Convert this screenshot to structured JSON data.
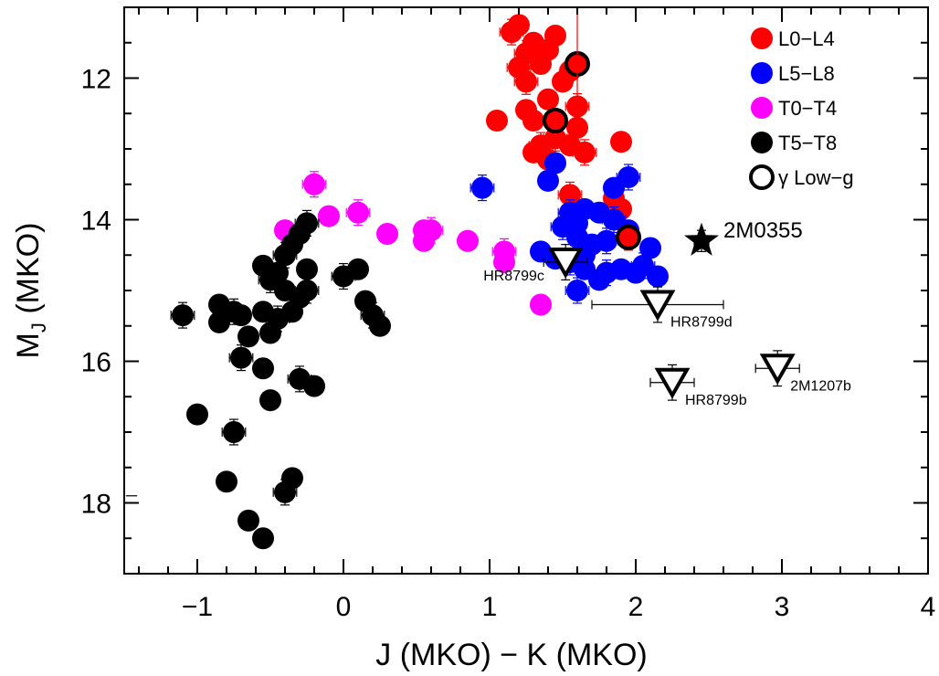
{
  "chart_data": {
    "type": "scatter",
    "xlabel": "J (MKO) − K (MKO)",
    "ylabel_main": "M",
    "ylabel_sub": "J",
    "ylabel_rest": " (MKO)",
    "xlim": [
      -1.5,
      4.0
    ],
    "ylim": [
      19.0,
      11.0
    ],
    "y_inverted": true,
    "x_ticks": [
      -1,
      0,
      1,
      2,
      3,
      4
    ],
    "x_tick_labels": [
      "−1",
      "0",
      "1",
      "2",
      "3",
      "4"
    ],
    "y_ticks": [
      12,
      14,
      16,
      18
    ],
    "y_tick_labels": [
      "12",
      "14",
      "16",
      "18"
    ],
    "legend_position": "top-right",
    "legend": [
      {
        "label": "L0−L4",
        "color": "#ff0000",
        "marker": "filled-circle"
      },
      {
        "label": "L5−L8",
        "color": "#0000ff",
        "marker": "filled-circle"
      },
      {
        "label": "T0−T4",
        "color": "#ff00ff",
        "marker": "filled-circle"
      },
      {
        "label": "T5−T8",
        "color": "#000000",
        "marker": "filled-circle"
      },
      {
        "label": "γ Low−g",
        "color": "#000000",
        "marker": "open-circle"
      }
    ],
    "series": [
      {
        "name": "L0−L4",
        "color": "#ff0000",
        "points": [
          [
            1.15,
            11.35
          ],
          [
            1.2,
            11.25
          ],
          [
            1.3,
            11.5
          ],
          [
            1.25,
            11.65
          ],
          [
            1.45,
            11.4
          ],
          [
            1.4,
            11.6
          ],
          [
            1.2,
            11.85
          ],
          [
            1.35,
            11.8
          ],
          [
            1.55,
            11.9
          ],
          [
            1.25,
            12.05
          ],
          [
            1.5,
            12.05
          ],
          [
            1.4,
            12.3
          ],
          [
            1.6,
            12.4
          ],
          [
            1.25,
            12.45
          ],
          [
            1.3,
            12.6
          ],
          [
            1.45,
            12.85
          ],
          [
            1.6,
            12.7
          ],
          [
            1.55,
            12.95
          ],
          [
            1.35,
            12.95
          ],
          [
            1.4,
            13.15
          ],
          [
            1.3,
            13.05
          ],
          [
            1.65,
            13.05
          ],
          [
            1.9,
            12.9
          ],
          [
            1.05,
            12.6
          ],
          [
            1.55,
            13.65
          ],
          [
            1.85,
            13.7
          ],
          [
            1.9,
            13.85
          ],
          [
            1.95,
            14.25
          ]
        ]
      },
      {
        "name": "L5−L8",
        "color": "#0000ff",
        "points": [
          [
            0.95,
            13.55
          ],
          [
            1.45,
            13.2
          ],
          [
            1.4,
            13.45
          ],
          [
            1.55,
            13.9
          ],
          [
            1.6,
            14.05
          ],
          [
            1.65,
            13.85
          ],
          [
            1.5,
            14.1
          ],
          [
            1.6,
            14.25
          ],
          [
            1.7,
            14.35
          ],
          [
            1.8,
            14.3
          ],
          [
            1.35,
            14.45
          ],
          [
            1.45,
            14.55
          ],
          [
            1.55,
            14.6
          ],
          [
            1.65,
            14.7
          ],
          [
            1.75,
            14.85
          ],
          [
            1.8,
            14.75
          ],
          [
            1.9,
            14.7
          ],
          [
            2.0,
            14.75
          ],
          [
            2.05,
            14.65
          ],
          [
            2.15,
            14.8
          ],
          [
            1.75,
            13.9
          ],
          [
            1.85,
            14.0
          ],
          [
            1.95,
            14.15
          ],
          [
            1.85,
            13.55
          ],
          [
            1.95,
            13.4
          ],
          [
            2.1,
            14.4
          ],
          [
            1.65,
            14.5
          ],
          [
            1.6,
            15.0
          ]
        ]
      },
      {
        "name": "T0−T4",
        "color": "#ff00ff",
        "points": [
          [
            -0.2,
            13.5
          ],
          [
            -0.4,
            14.15
          ],
          [
            -0.1,
            13.95
          ],
          [
            0.1,
            13.9
          ],
          [
            0.3,
            14.2
          ],
          [
            0.55,
            14.15
          ],
          [
            0.6,
            14.15
          ],
          [
            0.55,
            14.3
          ],
          [
            0.85,
            14.3
          ],
          [
            1.1,
            14.45
          ],
          [
            1.1,
            14.6
          ],
          [
            1.35,
            15.2
          ]
        ]
      },
      {
        "name": "T5−T8",
        "color": "#000000",
        "points": [
          [
            -0.25,
            14.05
          ],
          [
            -0.3,
            14.2
          ],
          [
            -0.35,
            14.35
          ],
          [
            -0.4,
            14.5
          ],
          [
            -0.55,
            14.65
          ],
          [
            -0.45,
            14.75
          ],
          [
            -0.5,
            14.85
          ],
          [
            -0.4,
            15.0
          ],
          [
            -0.3,
            15.1
          ],
          [
            -0.25,
            15.0
          ],
          [
            -0.25,
            14.7
          ],
          [
            -0.35,
            15.3
          ],
          [
            -0.45,
            15.4
          ],
          [
            -0.55,
            15.3
          ],
          [
            -0.7,
            15.35
          ],
          [
            -0.75,
            15.3
          ],
          [
            -0.85,
            15.45
          ],
          [
            -0.85,
            15.2
          ],
          [
            -1.1,
            15.35
          ],
          [
            -0.65,
            15.65
          ],
          [
            -0.5,
            15.6
          ],
          [
            -0.7,
            15.95
          ],
          [
            -0.55,
            16.1
          ],
          [
            -0.5,
            16.55
          ],
          [
            -0.3,
            16.25
          ],
          [
            -0.2,
            16.35
          ],
          [
            -1.0,
            16.75
          ],
          [
            -0.75,
            17.0
          ],
          [
            -0.8,
            17.7
          ],
          [
            -0.35,
            17.65
          ],
          [
            -0.4,
            17.85
          ],
          [
            -0.65,
            18.25
          ],
          [
            -0.55,
            18.5
          ],
          [
            0.0,
            14.8
          ],
          [
            0.1,
            14.7
          ],
          [
            0.15,
            15.15
          ],
          [
            0.2,
            15.35
          ],
          [
            0.25,
            15.5
          ]
        ]
      },
      {
        "name": "γ Low−g",
        "color": "#000000",
        "points": [
          [
            1.6,
            11.8,
            "#ff0000"
          ],
          [
            1.45,
            12.6,
            "#ff0000"
          ],
          [
            1.95,
            14.25,
            "#ff0000"
          ]
        ]
      }
    ],
    "annotations": [
      {
        "label": "2M0355",
        "x": 2.45,
        "y": 14.3,
        "marker": "star"
      },
      {
        "label": "HR8799c",
        "x": 1.52,
        "y": 14.6,
        "marker": "open-triangle-down"
      },
      {
        "label": "HR8799d",
        "x": 2.15,
        "y": 15.2,
        "marker": "open-triangle-down"
      },
      {
        "label": "HR8799b",
        "x": 2.25,
        "y": 16.3,
        "marker": "open-triangle-down"
      },
      {
        "label": "2M1207b",
        "x": 2.97,
        "y": 16.1,
        "marker": "open-triangle-down"
      }
    ]
  }
}
